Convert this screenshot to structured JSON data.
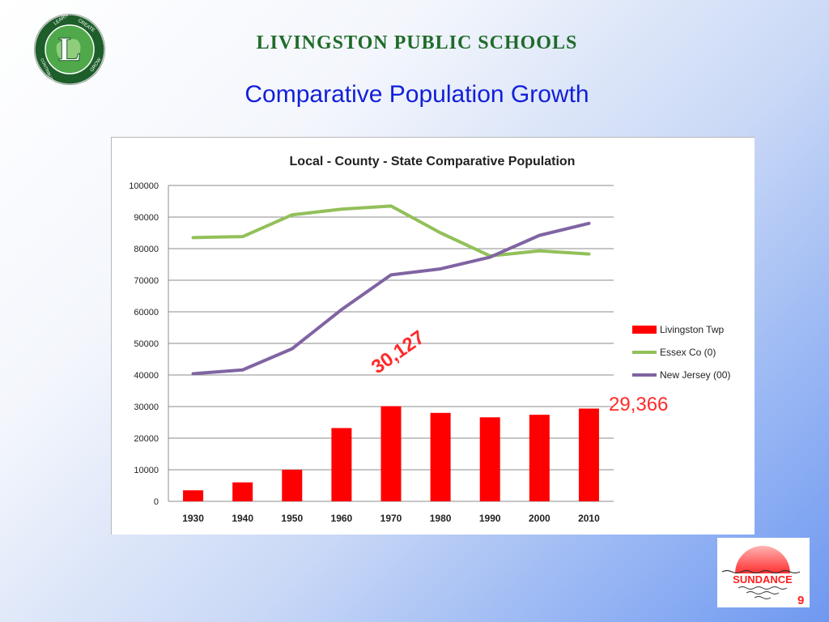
{
  "header": {
    "org_title": "LIVINGSTON PUBLIC SCHOOLS",
    "slide_title": "Comparative Population Growth"
  },
  "logo": {
    "letter": "L",
    "ring_words": [
      "LEARN",
      "CREATE",
      "CONTRIBUTE",
      "GROW"
    ]
  },
  "callouts": {
    "peak_1970": "30,127",
    "latest_2010": "29,366"
  },
  "footer": {
    "brand": "SUNDANCE",
    "page_number": "9"
  },
  "colors": {
    "livingston": "#ff0000",
    "essex": "#92c05a",
    "new_jersey": "#8064a2",
    "title_green": "#1f6b2a",
    "title_blue": "#1320d8"
  },
  "chart_data": {
    "type": "bar",
    "title": "Local - County - State Comparative Population",
    "categories": [
      "1930",
      "1940",
      "1950",
      "1960",
      "1970",
      "1980",
      "1990",
      "2000",
      "2010"
    ],
    "y_ticks": [
      "0",
      "10000",
      "20000",
      "30000",
      "40000",
      "50000",
      "60000",
      "70000",
      "80000",
      "90000",
      "100000"
    ],
    "ylim": [
      0,
      100000
    ],
    "grid": true,
    "legend_position": "right",
    "series": [
      {
        "name": "Livingston Twp",
        "type": "bar",
        "color": "#ff0000",
        "values": [
          3500,
          6000,
          10000,
          23200,
          30127,
          28000,
          26600,
          27400,
          29366
        ]
      },
      {
        "name": "Essex Co (0)",
        "type": "line",
        "color": "#92c05a",
        "values": [
          83500,
          83800,
          90700,
          92500,
          93500,
          85000,
          77700,
          79300,
          78300
        ]
      },
      {
        "name": "New Jersey (00)",
        "type": "line",
        "color": "#8064a2",
        "values": [
          40400,
          41600,
          48300,
          60700,
          71700,
          73600,
          77300,
          84200,
          88000
        ]
      }
    ]
  }
}
